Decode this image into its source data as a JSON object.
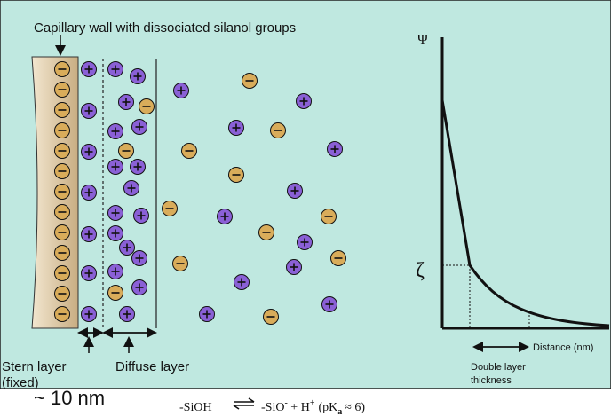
{
  "labels": {
    "title": "Capillary wall with dissociated silanol groups",
    "stern_layer": "Stern layer",
    "fixed": "(fixed)",
    "diffuse_layer": "Diffuse layer",
    "ten_nm": "~ 10 nm",
    "psi": "Ψ",
    "zeta": "ζ",
    "distance": "Distance (nm)",
    "double_layer_line1": "Double layer",
    "double_layer_line2": "thickness"
  },
  "equation": {
    "left": "-SiOH",
    "right_sio": "-SiO",
    "right_minus": "-",
    "plus": " + H",
    "h_plus": "+",
    "pk_open": "(pK",
    "pk_sub": "a",
    "pk_approx": "≈  6)"
  },
  "colors": {
    "background": "#bfe8e0",
    "panel_border": "#222222",
    "positive_ion": "#8a60d6",
    "negative_ion": "#d9ac5a",
    "wall_light": "#f2e6cf",
    "wall_dark": "#c8ad82"
  },
  "icons": {
    "positive": "plus-circle-icon",
    "negative": "minus-circle-icon"
  }
}
